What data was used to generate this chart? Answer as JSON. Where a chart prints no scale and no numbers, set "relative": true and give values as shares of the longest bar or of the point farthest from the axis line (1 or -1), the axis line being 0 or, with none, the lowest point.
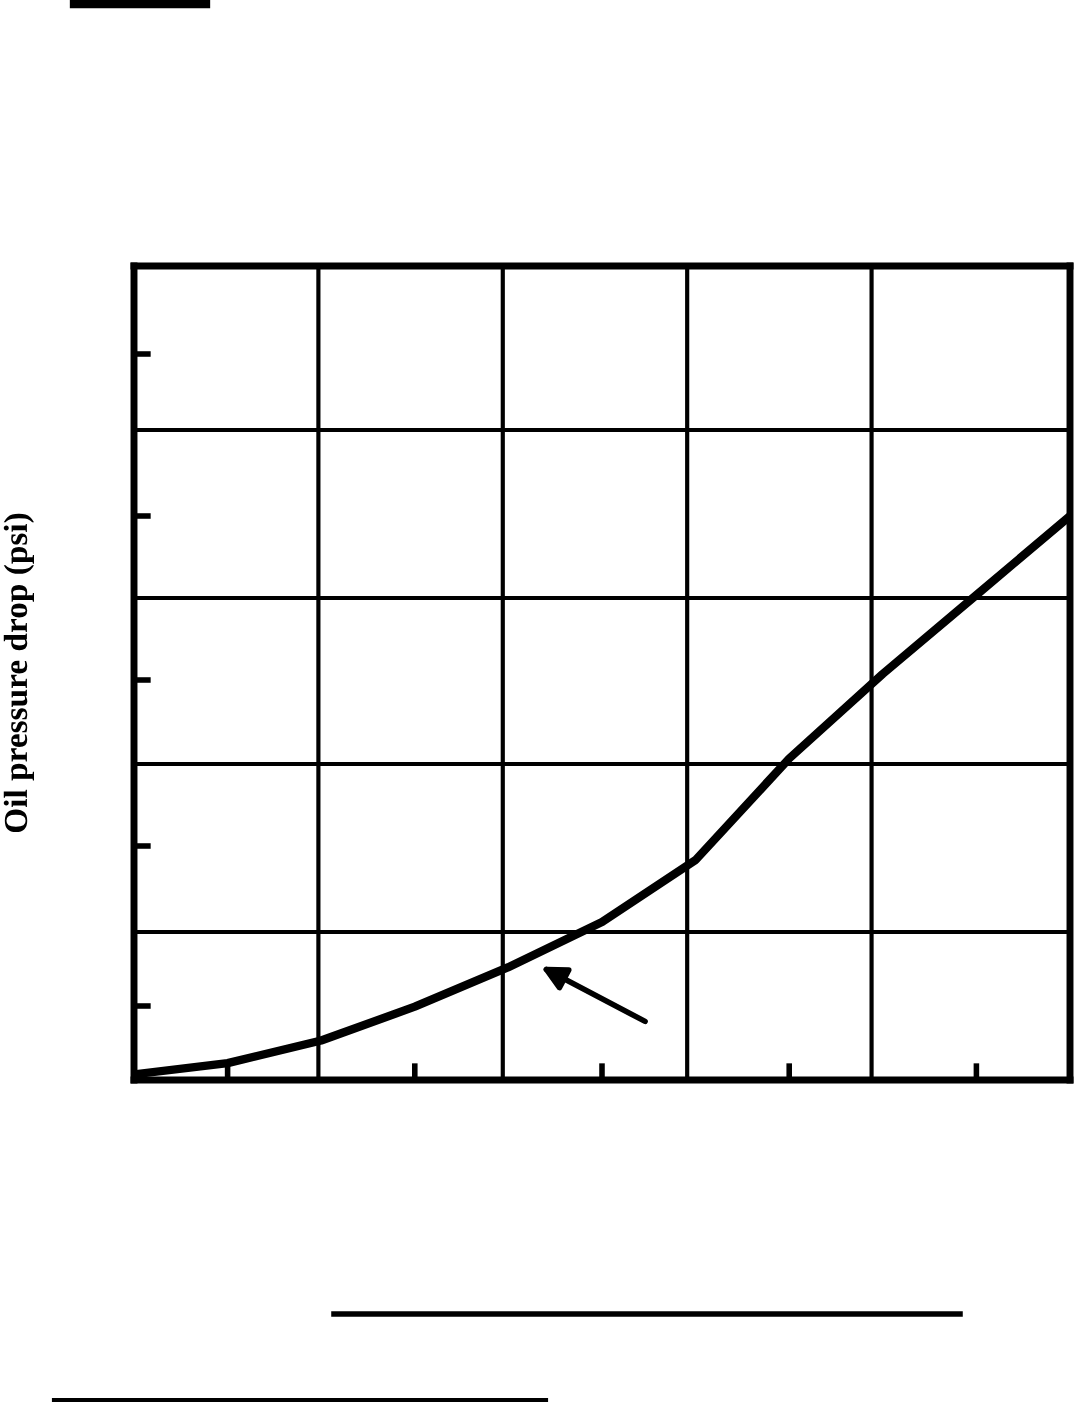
{
  "chart_data": {
    "type": "line",
    "ylabel": "Oil pressure drop (psi)",
    "relative": true,
    "grid": true,
    "marker": "none",
    "line_style": "solid",
    "categories": [
      null,
      null,
      null,
      null,
      null,
      null,
      null,
      null,
      null,
      null,
      null
    ],
    "series": [
      {
        "color": "#000000",
        "values": [
          0.01,
          0.03,
          0.07,
          0.13,
          0.2,
          0.28,
          0.39,
          0.57,
          0.72,
          0.86,
          1
        ]
      }
    ]
  }
}
